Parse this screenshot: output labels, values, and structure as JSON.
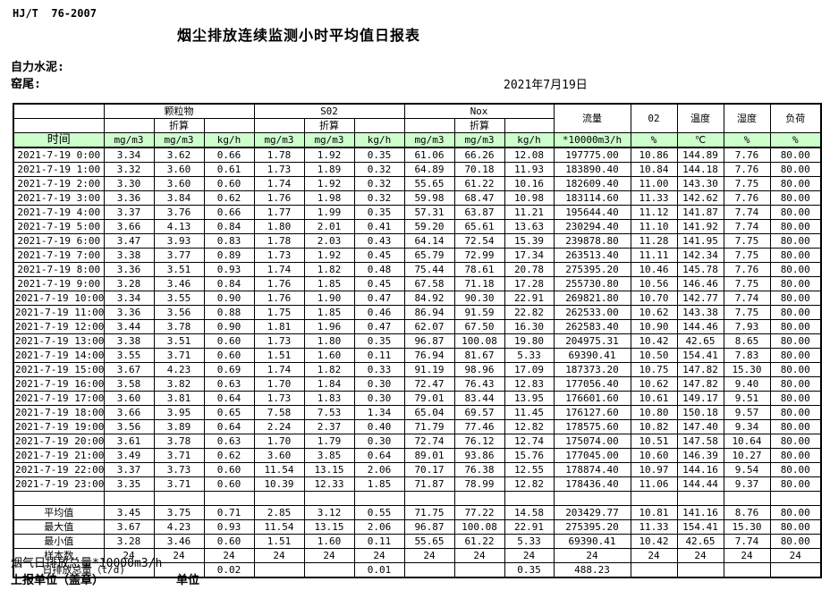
{
  "page": {
    "standard": "HJ/T  76-2007",
    "title": "烟尘排放连续监测小时平均值日报表",
    "company": "自力水泥:",
    "location": "窑尾:",
    "date": "2021年7月19日"
  },
  "colors": {
    "header_green": "#CCFFCC",
    "border": "#000000"
  },
  "table": {
    "header": {
      "time_label": "时间",
      "groups": [
        {
          "label": "颗粒物",
          "converted_label": "折算",
          "units": [
            "mg/m3",
            "mg/m3",
            "kg/h"
          ]
        },
        {
          "label": "S02",
          "converted_label": "折算",
          "units": [
            "mg/m3",
            "mg/m3",
            "kg/h"
          ]
        },
        {
          "label": "Nox",
          "converted_label": "折算",
          "units": [
            "mg/m3",
            "mg/m3",
            "kg/h"
          ]
        }
      ],
      "flow": {
        "label": "流量",
        "unit": "*10000m3/h"
      },
      "o2": {
        "label": "02",
        "unit": "%"
      },
      "temperature": {
        "label": "温度",
        "unit": "℃"
      },
      "humidity": {
        "label": "湿度",
        "unit": "%"
      },
      "load": {
        "label": "负荷",
        "unit": "%"
      }
    },
    "rows": [
      {
        "time": "2021-7-19 0:00",
        "values": [
          "3.34",
          "3.62",
          "0.66",
          "1.78",
          "1.92",
          "0.35",
          "61.06",
          "66.26",
          "12.08",
          "197775.00",
          "10.86",
          "144.89",
          "7.76",
          "80.00"
        ]
      },
      {
        "time": "2021-7-19 1:00",
        "values": [
          "3.32",
          "3.60",
          "0.61",
          "1.73",
          "1.89",
          "0.32",
          "64.89",
          "70.18",
          "11.93",
          "183890.40",
          "10.84",
          "144.18",
          "7.76",
          "80.00"
        ]
      },
      {
        "time": "2021-7-19 2:00",
        "values": [
          "3.30",
          "3.60",
          "0.60",
          "1.74",
          "1.92",
          "0.32",
          "55.65",
          "61.22",
          "10.16",
          "182609.40",
          "11.00",
          "143.30",
          "7.75",
          "80.00"
        ]
      },
      {
        "time": "2021-7-19 3:00",
        "values": [
          "3.36",
          "3.84",
          "0.62",
          "1.76",
          "1.98",
          "0.32",
          "59.98",
          "68.47",
          "10.98",
          "183114.60",
          "11.33",
          "142.62",
          "7.76",
          "80.00"
        ]
      },
      {
        "time": "2021-7-19 4:00",
        "values": [
          "3.37",
          "3.76",
          "0.66",
          "1.77",
          "1.99",
          "0.35",
          "57.31",
          "63.87",
          "11.21",
          "195644.40",
          "11.12",
          "141.87",
          "7.74",
          "80.00"
        ]
      },
      {
        "time": "2021-7-19 5:00",
        "values": [
          "3.66",
          "4.13",
          "0.84",
          "1.80",
          "2.01",
          "0.41",
          "59.20",
          "65.61",
          "13.63",
          "230294.40",
          "11.10",
          "141.92",
          "7.74",
          "80.00"
        ]
      },
      {
        "time": "2021-7-19 6:00",
        "values": [
          "3.47",
          "3.93",
          "0.83",
          "1.78",
          "2.03",
          "0.43",
          "64.14",
          "72.54",
          "15.39",
          "239878.80",
          "11.28",
          "141.95",
          "7.75",
          "80.00"
        ]
      },
      {
        "time": "2021-7-19 7:00",
        "values": [
          "3.38",
          "3.77",
          "0.89",
          "1.73",
          "1.92",
          "0.45",
          "65.79",
          "72.99",
          "17.34",
          "263513.40",
          "11.11",
          "142.34",
          "7.75",
          "80.00"
        ]
      },
      {
        "time": "2021-7-19 8:00",
        "values": [
          "3.36",
          "3.51",
          "0.93",
          "1.74",
          "1.82",
          "0.48",
          "75.44",
          "78.61",
          "20.78",
          "275395.20",
          "10.46",
          "145.78",
          "7.76",
          "80.00"
        ]
      },
      {
        "time": "2021-7-19 9:00",
        "values": [
          "3.28",
          "3.46",
          "0.84",
          "1.76",
          "1.85",
          "0.45",
          "67.58",
          "71.18",
          "17.28",
          "255730.80",
          "10.56",
          "146.46",
          "7.75",
          "80.00"
        ]
      },
      {
        "time": "2021-7-19 10:00",
        "values": [
          "3.34",
          "3.55",
          "0.90",
          "1.76",
          "1.90",
          "0.47",
          "84.92",
          "90.30",
          "22.91",
          "269821.80",
          "10.70",
          "142.77",
          "7.74",
          "80.00"
        ]
      },
      {
        "time": "2021-7-19 11:00",
        "values": [
          "3.36",
          "3.56",
          "0.88",
          "1.75",
          "1.85",
          "0.46",
          "86.94",
          "91.59",
          "22.82",
          "262533.00",
          "10.62",
          "143.38",
          "7.75",
          "80.00"
        ]
      },
      {
        "time": "2021-7-19 12:00",
        "values": [
          "3.44",
          "3.78",
          "0.90",
          "1.81",
          "1.96",
          "0.47",
          "62.07",
          "67.50",
          "16.30",
          "262583.40",
          "10.90",
          "144.46",
          "7.93",
          "80.00"
        ]
      },
      {
        "time": "2021-7-19 13:00",
        "values": [
          "3.38",
          "3.51",
          "0.60",
          "1.73",
          "1.80",
          "0.35",
          "96.87",
          "100.08",
          "19.80",
          "204975.31",
          "10.42",
          "42.65",
          "8.65",
          "80.00"
        ]
      },
      {
        "time": "2021-7-19 14:00",
        "values": [
          "3.55",
          "3.71",
          "0.60",
          "1.51",
          "1.60",
          "0.11",
          "76.94",
          "81.67",
          "5.33",
          "69390.41",
          "10.50",
          "154.41",
          "7.83",
          "80.00"
        ]
      },
      {
        "time": "2021-7-19 15:00",
        "values": [
          "3.67",
          "4.23",
          "0.69",
          "1.74",
          "1.82",
          "0.33",
          "91.19",
          "98.96",
          "17.09",
          "187373.20",
          "10.75",
          "147.82",
          "15.30",
          "80.00"
        ]
      },
      {
        "time": "2021-7-19 16:00",
        "values": [
          "3.58",
          "3.82",
          "0.63",
          "1.70",
          "1.84",
          "0.30",
          "72.47",
          "76.43",
          "12.83",
          "177056.40",
          "10.62",
          "147.82",
          "9.40",
          "80.00"
        ]
      },
      {
        "time": "2021-7-19 17:00",
        "values": [
          "3.60",
          "3.81",
          "0.64",
          "1.73",
          "1.83",
          "0.30",
          "79.01",
          "83.44",
          "13.95",
          "176601.60",
          "10.61",
          "149.17",
          "9.51",
          "80.00"
        ]
      },
      {
        "time": "2021-7-19 18:00",
        "values": [
          "3.66",
          "3.95",
          "0.65",
          "7.58",
          "7.53",
          "1.34",
          "65.04",
          "69.57",
          "11.45",
          "176127.60",
          "10.80",
          "150.18",
          "9.57",
          "80.00"
        ]
      },
      {
        "time": "2021-7-19 19:00",
        "values": [
          "3.56",
          "3.89",
          "0.64",
          "2.24",
          "2.37",
          "0.40",
          "71.79",
          "77.46",
          "12.82",
          "178575.60",
          "10.82",
          "147.40",
          "9.34",
          "80.00"
        ]
      },
      {
        "time": "2021-7-19 20:00",
        "values": [
          "3.61",
          "3.78",
          "0.63",
          "1.70",
          "1.79",
          "0.30",
          "72.74",
          "76.12",
          "12.74",
          "175074.00",
          "10.51",
          "147.58",
          "10.64",
          "80.00"
        ]
      },
      {
        "time": "2021-7-19 21:00",
        "values": [
          "3.49",
          "3.71",
          "0.62",
          "3.60",
          "3.85",
          "0.64",
          "89.01",
          "93.86",
          "15.76",
          "177045.00",
          "10.60",
          "146.39",
          "10.27",
          "80.00"
        ]
      },
      {
        "time": "2021-7-19 22:00",
        "values": [
          "3.37",
          "3.73",
          "0.60",
          "11.54",
          "13.15",
          "2.06",
          "70.17",
          "76.38",
          "12.55",
          "178874.40",
          "10.97",
          "144.16",
          "9.54",
          "80.00"
        ]
      },
      {
        "time": "2021-7-19 23:00",
        "values": [
          "3.35",
          "3.71",
          "0.60",
          "10.39",
          "12.33",
          "1.85",
          "71.87",
          "78.99",
          "12.82",
          "178436.40",
          "11.06",
          "144.44",
          "9.37",
          "80.00"
        ]
      }
    ],
    "summary": [
      {
        "label": "",
        "colspan": 1,
        "align": "center",
        "values": [
          "",
          "",
          "",
          "",
          "",
          "",
          "",
          "",
          "",
          "",
          "",
          "",
          "",
          ""
        ]
      },
      {
        "label": "平均值",
        "colspan": 1,
        "align": "center",
        "values": [
          "3.45",
          "3.75",
          "0.71",
          "2.85",
          "3.12",
          "0.55",
          "71.75",
          "77.22",
          "14.58",
          "203429.77",
          "10.81",
          "141.16",
          "8.76",
          "80.00"
        ]
      },
      {
        "label": "最大值",
        "colspan": 1,
        "align": "center",
        "values": [
          "3.67",
          "4.23",
          "0.93",
          "11.54",
          "13.15",
          "2.06",
          "96.87",
          "100.08",
          "22.91",
          "275395.20",
          "11.33",
          "154.41",
          "15.30",
          "80.00"
        ]
      },
      {
        "label": "最小值",
        "colspan": 1,
        "align": "center",
        "values": [
          "3.28",
          "3.46",
          "0.60",
          "1.51",
          "1.60",
          "0.11",
          "55.65",
          "61.22",
          "5.33",
          "69390.41",
          "10.42",
          "42.65",
          "7.74",
          "80.00"
        ]
      },
      {
        "label": "样本数",
        "colspan": 1,
        "align": "center",
        "values": [
          "24",
          "24",
          "24",
          "24",
          "24",
          "24",
          "24",
          "24",
          "24",
          "24",
          "24",
          "24",
          "24",
          "24"
        ]
      },
      {
        "label": "日排放总量（t/d)",
        "colspan": 2,
        "align": "left",
        "values": [
          "",
          "0.02",
          "",
          "",
          "0.01",
          "",
          "",
          "0.35",
          "488.23",
          "",
          "",
          "",
          ""
        ]
      }
    ]
  },
  "footer": {
    "note": "烟气日排放总量*10000m3/h",
    "report_unit": "上报单位（盖章）",
    "unit_label": "单位"
  }
}
